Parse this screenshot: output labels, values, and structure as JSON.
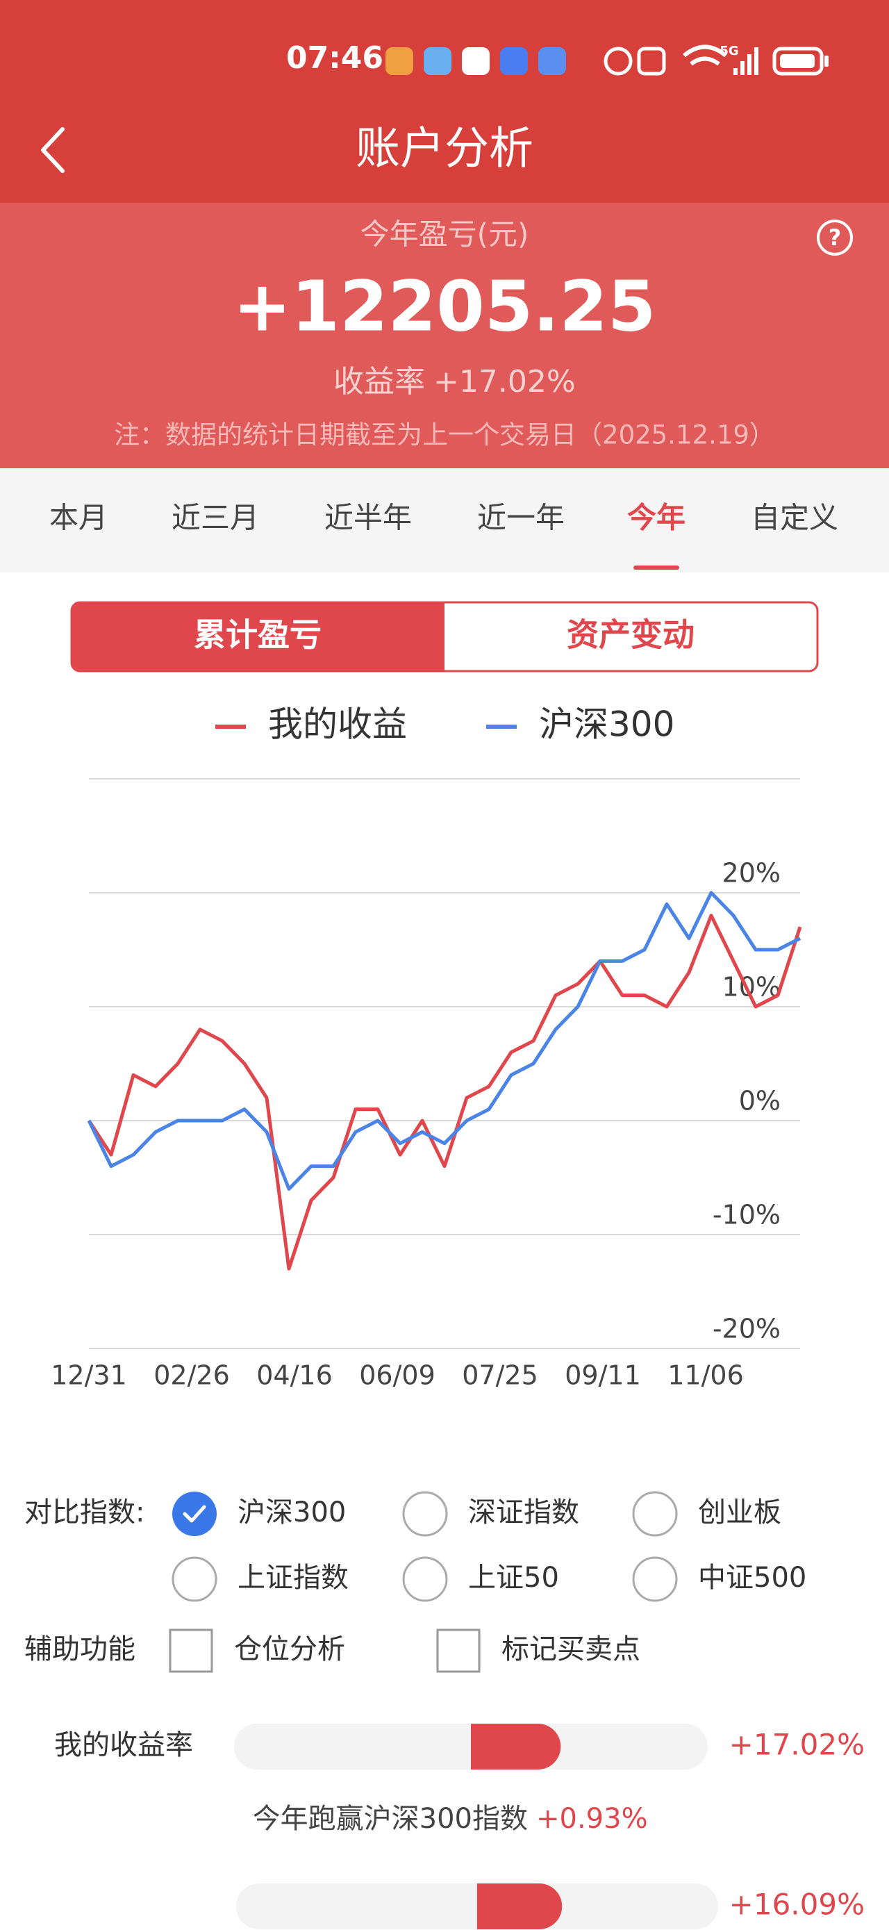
{
  "status": {
    "time": "07:46",
    "network": "5G"
  },
  "header": {
    "title": "账户分析"
  },
  "summary": {
    "label": "今年盈亏(元)",
    "amount": "+12205.25",
    "rate_label": "收益率",
    "rate": "+17.02%",
    "note": "注：数据的统计日期截至为上一个交易日（2025.12.19）"
  },
  "tabs": {
    "items": [
      "本月",
      "近三月",
      "近半年",
      "近一年",
      "今年",
      "自定义"
    ],
    "selected": 4
  },
  "toggle": {
    "items": [
      "累计盈亏",
      "资产变动"
    ],
    "selected": 0
  },
  "chart_data": {
    "type": "line",
    "x": [
      0,
      8,
      16,
      24,
      32,
      40,
      48,
      56,
      64,
      72,
      80,
      88,
      96,
      104,
      112,
      120,
      128,
      136,
      144,
      152,
      160,
      168,
      176,
      184,
      192,
      200,
      208,
      216,
      224,
      232,
      240,
      248,
      256
    ],
    "xlim": [
      0,
      256
    ],
    "xticks": [
      {
        "value": 0,
        "label": "12/31"
      },
      {
        "value": 37,
        "label": "02/26"
      },
      {
        "value": 74,
        "label": "04/16"
      },
      {
        "value": 111,
        "label": "06/09"
      },
      {
        "value": 148,
        "label": "07/25"
      },
      {
        "value": 185,
        "label": "09/11"
      },
      {
        "value": 222,
        "label": "11/06"
      }
    ],
    "ylim": [
      -20,
      30
    ],
    "yticks": [
      {
        "value": 20,
        "label": "20%"
      },
      {
        "value": 10,
        "label": "10%"
      },
      {
        "value": 0,
        "label": "0%"
      },
      {
        "value": -10,
        "label": "-10%"
      },
      {
        "value": -20,
        "label": "-20%"
      }
    ],
    "grid": true,
    "series": [
      {
        "name": "我的收益",
        "color": "#e0474c",
        "values": [
          0,
          -3,
          4,
          3,
          5,
          8,
          7,
          5,
          2,
          -13,
          -7,
          -5,
          1,
          1,
          -3,
          0,
          -4,
          2,
          3,
          6,
          7,
          11,
          12,
          14,
          11,
          11,
          10,
          13,
          18,
          14,
          10,
          11,
          17
        ]
      },
      {
        "name": "沪深300",
        "color": "#4a84e6",
        "values": [
          0,
          -4,
          -3,
          -1,
          0,
          0,
          0,
          1,
          -1,
          -6,
          -4,
          -4,
          -1,
          0,
          -2,
          -1,
          -2,
          0,
          1,
          4,
          5,
          8,
          10,
          14,
          14,
          15,
          19,
          16,
          20,
          18,
          15,
          15,
          16
        ]
      }
    ]
  },
  "compare": {
    "label": "对比指数:",
    "options": [
      "沪深300",
      "深证指数",
      "创业板",
      "上证指数",
      "上证50",
      "中证500"
    ],
    "checked": 0
  },
  "assist": {
    "label": "辅助功能",
    "options": [
      "仓位分析",
      "标记买卖点"
    ]
  },
  "performance": {
    "rows": [
      {
        "label": "我的收益率",
        "value": 17.02,
        "value_label": "+17.02%"
      },
      {
        "value": 16.09,
        "value_label": "+16.09%"
      }
    ],
    "beat_text": "今年跑赢沪深300指数",
    "beat_value": "+0.93%"
  }
}
